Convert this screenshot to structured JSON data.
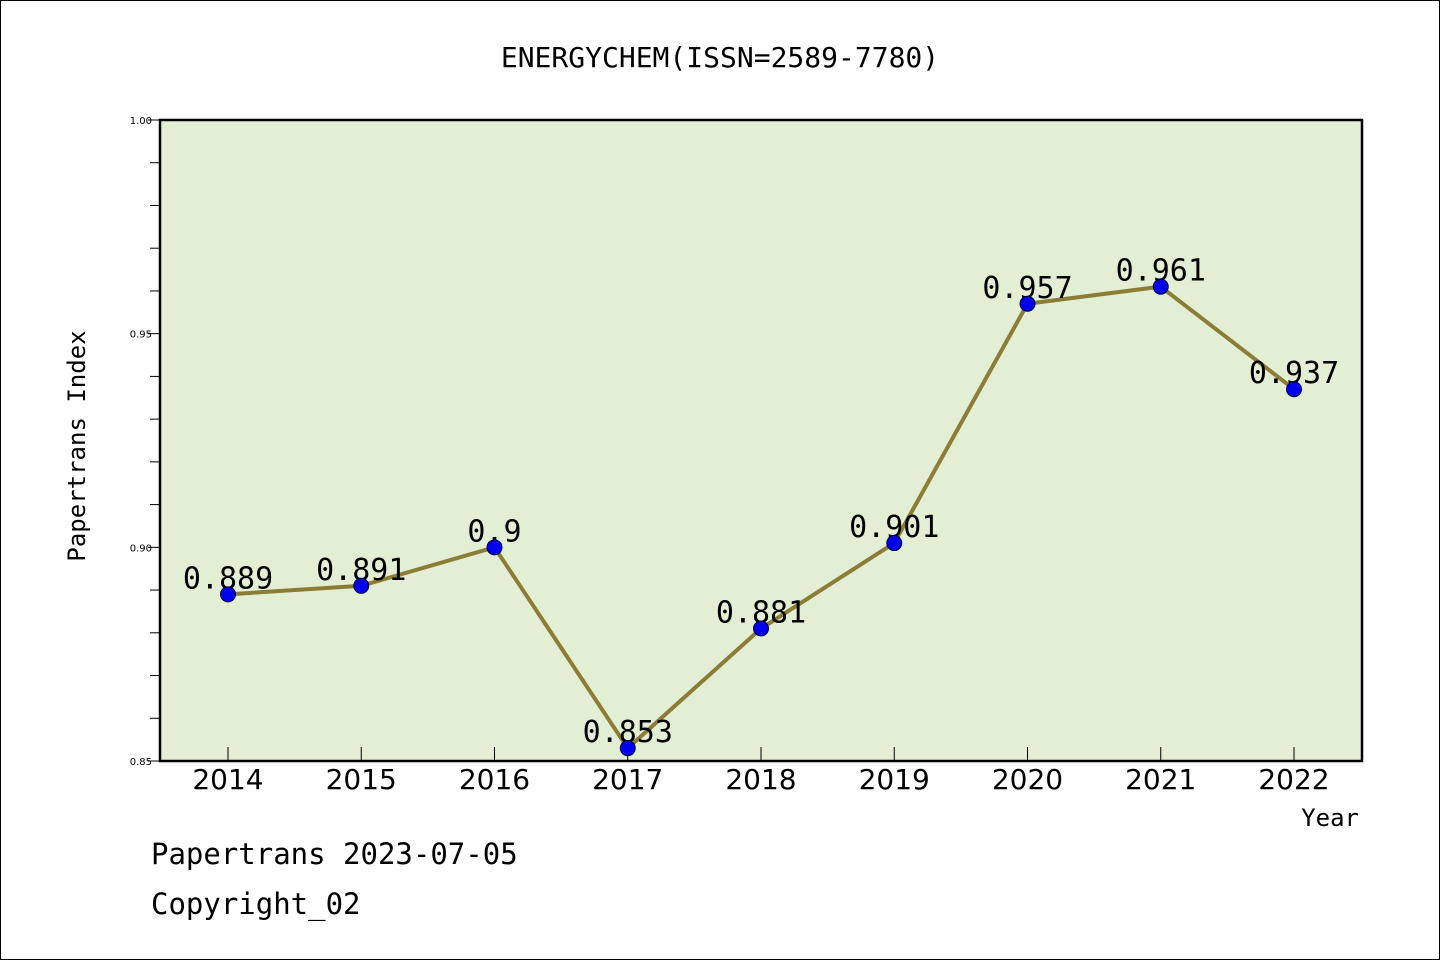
{
  "chart_data": {
    "type": "line",
    "title": "ENERGYCHEM(ISSN=2589-7780)",
    "xlabel": "Year",
    "ylabel": "Papertrans Index",
    "categories": [
      "2014",
      "2015",
      "2016",
      "2017",
      "2018",
      "2019",
      "2020",
      "2021",
      "2022"
    ],
    "series": [
      {
        "values": [
          0.889,
          0.891,
          0.9,
          0.853,
          0.881,
          0.901,
          0.957,
          0.961,
          0.937
        ],
        "labels": [
          "0.889",
          "0.891",
          "0.9",
          "0.853",
          "0.881",
          "0.901",
          "0.957",
          "0.961",
          "0.937"
        ]
      }
    ],
    "ylim": [
      0.85,
      1.0
    ],
    "yticks": [
      0.85,
      0.9,
      0.95,
      1.0
    ],
    "ytick_labels": [
      "0.85",
      "0.90",
      "0.95",
      "1.00"
    ],
    "grid": false,
    "legend": "none",
    "colors": {
      "plot_background": "#e2efd5",
      "line": "#8b7d36",
      "marker": "#0000ee"
    }
  },
  "footer": {
    "line1": "Papertrans 2023-07-05",
    "line2": "Copyright_02"
  }
}
